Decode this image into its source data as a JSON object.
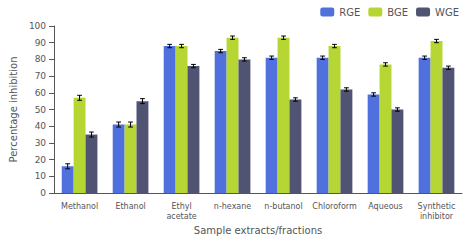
{
  "chart_data": {
    "type": "bar",
    "categories": [
      "Methanol",
      "Ethanol",
      "Ethyl\nacetate",
      "n-hexane",
      "n-butanol",
      "Chloroform",
      "Aqueous",
      "Synthetic\ninhibitor"
    ],
    "series": [
      {
        "name": "RGE",
        "values": [
          16,
          41,
          88,
          85,
          81,
          81,
          59,
          81
        ],
        "errors": [
          1.5,
          1.5,
          1.0,
          1.0,
          1.0,
          1.0,
          1.0,
          1.0
        ]
      },
      {
        "name": "BGE",
        "values": [
          57,
          41,
          88,
          93,
          93,
          88,
          77,
          91
        ],
        "errors": [
          1.5,
          1.5,
          1.0,
          1.0,
          1.0,
          1.0,
          1.0,
          1.0
        ]
      },
      {
        "name": "WGE",
        "values": [
          35,
          55,
          76,
          80,
          56,
          62,
          50,
          75
        ],
        "errors": [
          1.5,
          1.5,
          1.0,
          1.0,
          1.0,
          1.0,
          1.0,
          1.0
        ]
      }
    ],
    "xlabel": "Sample extracts/fractions",
    "ylabel": "Percentage inhibition",
    "ylim": [
      0,
      100
    ],
    "yticks": [
      0,
      10,
      20,
      30,
      40,
      50,
      60,
      70,
      80,
      90,
      100
    ],
    "grid": false,
    "legend": "upper right"
  }
}
